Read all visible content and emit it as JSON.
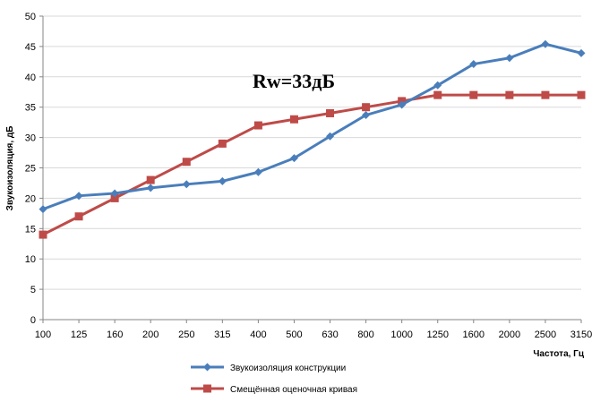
{
  "chart_data": {
    "type": "line",
    "categories": [
      "100",
      "125",
      "160",
      "200",
      "250",
      "315",
      "400",
      "500",
      "630",
      "800",
      "1000",
      "1250",
      "1600",
      "2000",
      "2500",
      "3150"
    ],
    "series": [
      {
        "name": "Звукоизоляция конструкции",
        "color": "#4a7ebb",
        "marker": "diamond",
        "values": [
          18.2,
          20.4,
          20.8,
          21.7,
          22.3,
          22.8,
          24.3,
          26.6,
          30.2,
          33.7,
          35.4,
          38.6,
          42.1,
          43.1,
          45.4,
          43.9
        ]
      },
      {
        "name": "Смещённая оценочная кривая",
        "color": "#be4b48",
        "marker": "square",
        "values": [
          14,
          17,
          20,
          23,
          26,
          29,
          32,
          33,
          34,
          35,
          36,
          37,
          37,
          37,
          37,
          37
        ]
      }
    ],
    "title": "",
    "xlabel": "Частота, Гц",
    "ylabel": "Звукоизоляция, дБ",
    "ylim": [
      0,
      50
    ],
    "yticks": [
      0,
      5,
      10,
      15,
      20,
      25,
      30,
      35,
      40,
      45,
      50
    ],
    "grid": true,
    "legend_position": "bottom",
    "annotation": "Rw=33дБ"
  }
}
